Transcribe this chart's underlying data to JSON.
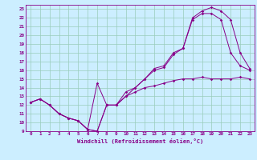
{
  "xlabel": "Windchill (Refroidissement éolien,°C)",
  "bg_color": "#cceeff",
  "line_color": "#880088",
  "grid_color": "#99ccbb",
  "xlim": [
    -0.5,
    23.5
  ],
  "ylim": [
    9,
    23.5
  ],
  "yticks": [
    9,
    10,
    11,
    12,
    13,
    14,
    15,
    16,
    17,
    18,
    19,
    20,
    21,
    22,
    23
  ],
  "xticks": [
    0,
    1,
    2,
    3,
    4,
    5,
    6,
    7,
    8,
    9,
    10,
    11,
    12,
    13,
    14,
    15,
    16,
    17,
    18,
    19,
    20,
    21,
    22,
    23
  ],
  "line1_x": [
    0,
    1,
    2,
    3,
    4,
    5,
    6,
    7,
    8,
    9,
    10,
    11,
    12,
    13,
    14,
    15,
    16,
    17,
    18,
    19,
    20,
    21,
    22,
    23
  ],
  "line1_y": [
    12.3,
    12.7,
    12.0,
    11.0,
    10.5,
    10.2,
    9.2,
    9.0,
    12.0,
    12.0,
    13.0,
    13.5,
    14.0,
    14.2,
    14.5,
    14.8,
    15.0,
    15.0,
    15.2,
    15.0,
    15.0,
    15.0,
    15.2,
    15.0
  ],
  "line2_x": [
    0,
    1,
    2,
    3,
    4,
    5,
    6,
    7,
    8,
    9,
    10,
    11,
    12,
    13,
    14,
    15,
    16,
    17,
    18,
    19,
    20,
    21,
    22,
    23
  ],
  "line2_y": [
    12.3,
    12.7,
    12.0,
    11.0,
    10.5,
    10.2,
    9.2,
    14.5,
    12.0,
    12.0,
    13.5,
    14.0,
    15.0,
    16.0,
    16.3,
    17.8,
    18.5,
    21.8,
    22.5,
    22.5,
    21.8,
    18.0,
    16.5,
    16.0
  ],
  "line3_x": [
    0,
    1,
    2,
    3,
    4,
    5,
    6,
    7,
    8,
    9,
    10,
    11,
    12,
    13,
    14,
    15,
    16,
    17,
    18,
    19,
    20,
    21,
    22,
    23
  ],
  "line3_y": [
    12.3,
    12.7,
    12.0,
    11.0,
    10.5,
    10.2,
    9.2,
    9.0,
    12.0,
    12.0,
    13.0,
    14.0,
    15.0,
    16.2,
    16.5,
    18.0,
    18.5,
    22.0,
    22.8,
    23.2,
    22.8,
    21.8,
    18.0,
    16.2
  ]
}
